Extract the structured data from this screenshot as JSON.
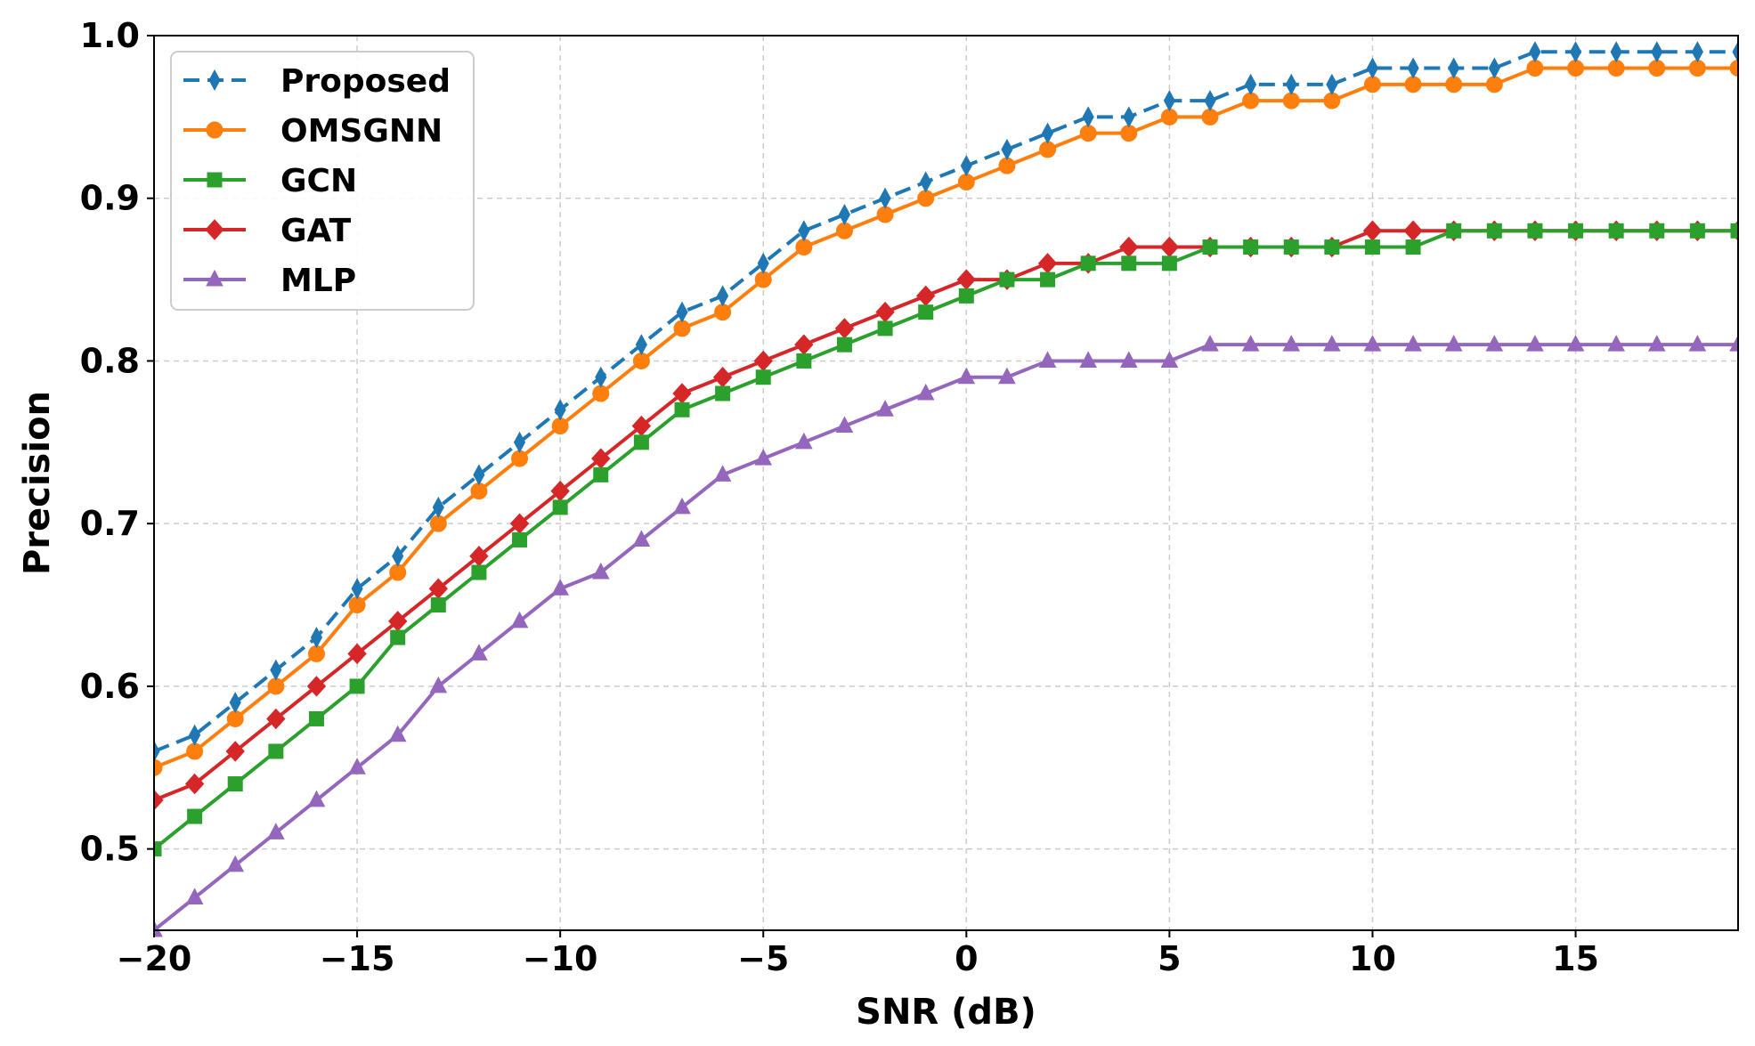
{
  "chart_data": {
    "type": "line",
    "title": "",
    "xlabel": "SNR (dB)",
    "ylabel": "Precision",
    "xlim": [
      -20,
      19
    ],
    "ylim": [
      0.45,
      1.0
    ],
    "grid": true,
    "legend_position": "top-left",
    "x_ticks": [
      -20,
      -15,
      -10,
      -5,
      0,
      5,
      10,
      15
    ],
    "x_tick_labels": [
      "−20",
      "−15",
      "−10",
      "−5",
      "0",
      "5",
      "10",
      "15"
    ],
    "y_ticks": [
      0.5,
      0.6,
      0.7,
      0.8,
      0.9,
      1.0
    ],
    "y_tick_labels": [
      "0.5",
      "0.6",
      "0.7",
      "0.8",
      "0.9",
      "1.0"
    ],
    "x": [
      -20,
      -19,
      -18,
      -17,
      -16,
      -15,
      -14,
      -13,
      -12,
      -11,
      -10,
      -9,
      -8,
      -7,
      -6,
      -5,
      -4,
      -3,
      -2,
      -1,
      0,
      1,
      2,
      3,
      4,
      5,
      6,
      7,
      8,
      9,
      10,
      11,
      12,
      13,
      14,
      15,
      16,
      17,
      18,
      19
    ],
    "series": [
      {
        "name": "Proposed",
        "color": "#1f77b4",
        "dashed": true,
        "marker": "thin_diamond",
        "values": [
          0.56,
          0.57,
          0.59,
          0.61,
          0.63,
          0.66,
          0.68,
          0.71,
          0.73,
          0.75,
          0.77,
          0.79,
          0.81,
          0.83,
          0.84,
          0.86,
          0.88,
          0.89,
          0.9,
          0.91,
          0.92,
          0.93,
          0.94,
          0.95,
          0.95,
          0.96,
          0.96,
          0.97,
          0.97,
          0.97,
          0.98,
          0.98,
          0.98,
          0.98,
          0.99,
          0.99,
          0.99,
          0.99,
          0.99,
          0.99
        ]
      },
      {
        "name": "OMSGNN",
        "color": "#ff7f0e",
        "dashed": false,
        "marker": "circle",
        "values": [
          0.55,
          0.56,
          0.58,
          0.6,
          0.62,
          0.65,
          0.67,
          0.7,
          0.72,
          0.74,
          0.76,
          0.78,
          0.8,
          0.82,
          0.83,
          0.85,
          0.87,
          0.88,
          0.89,
          0.9,
          0.91,
          0.92,
          0.93,
          0.94,
          0.94,
          0.95,
          0.95,
          0.96,
          0.96,
          0.96,
          0.97,
          0.97,
          0.97,
          0.97,
          0.98,
          0.98,
          0.98,
          0.98,
          0.98,
          0.98
        ]
      },
      {
        "name": "GCN",
        "color": "#2ca02c",
        "dashed": false,
        "marker": "square",
        "values": [
          0.5,
          0.52,
          0.54,
          0.56,
          0.58,
          0.6,
          0.63,
          0.65,
          0.67,
          0.69,
          0.71,
          0.73,
          0.75,
          0.77,
          0.78,
          0.79,
          0.8,
          0.81,
          0.82,
          0.83,
          0.84,
          0.85,
          0.85,
          0.86,
          0.86,
          0.86,
          0.87,
          0.87,
          0.87,
          0.87,
          0.87,
          0.87,
          0.88,
          0.88,
          0.88,
          0.88,
          0.88,
          0.88,
          0.88,
          0.88
        ]
      },
      {
        "name": "GAT",
        "color": "#d62728",
        "dashed": false,
        "marker": "diamond",
        "values": [
          0.53,
          0.54,
          0.56,
          0.58,
          0.6,
          0.62,
          0.64,
          0.66,
          0.68,
          0.7,
          0.72,
          0.74,
          0.76,
          0.78,
          0.79,
          0.8,
          0.81,
          0.82,
          0.83,
          0.84,
          0.85,
          0.85,
          0.86,
          0.86,
          0.87,
          0.87,
          0.87,
          0.87,
          0.87,
          0.87,
          0.88,
          0.88,
          0.88,
          0.88,
          0.88,
          0.88,
          0.88,
          0.88,
          0.88,
          0.88
        ]
      },
      {
        "name": "MLP",
        "color": "#9467bd",
        "dashed": false,
        "marker": "triangle",
        "values": [
          0.45,
          0.47,
          0.49,
          0.51,
          0.53,
          0.55,
          0.57,
          0.6,
          0.62,
          0.64,
          0.66,
          0.67,
          0.69,
          0.71,
          0.73,
          0.74,
          0.75,
          0.76,
          0.77,
          0.78,
          0.79,
          0.79,
          0.8,
          0.8,
          0.8,
          0.8,
          0.81,
          0.81,
          0.81,
          0.81,
          0.81,
          0.81,
          0.81,
          0.81,
          0.81,
          0.81,
          0.81,
          0.81,
          0.81,
          0.81
        ]
      }
    ]
  }
}
